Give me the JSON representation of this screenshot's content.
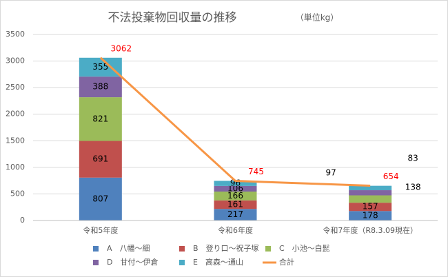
{
  "chart_data": {
    "type": "bar",
    "stacked": true,
    "title": "不法投棄物回収量の推移",
    "subtitle": "（単位kg）",
    "categories": [
      "令和5年度",
      "令和6年度",
      "令和7年度（R8.3.09現在）"
    ],
    "series": [
      {
        "name": "A　八幡～細",
        "color": "#4f81bd",
        "values": [
          807,
          217,
          178
        ]
      },
      {
        "name": "B　登り口～祝子塚",
        "color": "#c0504d",
        "values": [
          691,
          161,
          157
        ]
      },
      {
        "name": "C　小池～白髭",
        "color": "#9bbb59",
        "values": [
          821,
          166,
          138
        ]
      },
      {
        "name": "D　甘付～伊倉",
        "color": "#8064a2",
        "values": [
          388,
          106,
          97
        ]
      },
      {
        "name": "E　高森～通山",
        "color": "#4bacc6",
        "values": [
          355,
          96,
          83
        ]
      },
      {
        "name": "合計",
        "type": "line",
        "color": "#f79646",
        "label_color": "#ff0000",
        "values": [
          3062,
          745,
          654
        ]
      }
    ],
    "ylim": [
      0,
      3500
    ],
    "yticks": [
      0,
      500,
      1000,
      1500,
      2000,
      2500,
      3000,
      3500
    ],
    "grid": true
  }
}
